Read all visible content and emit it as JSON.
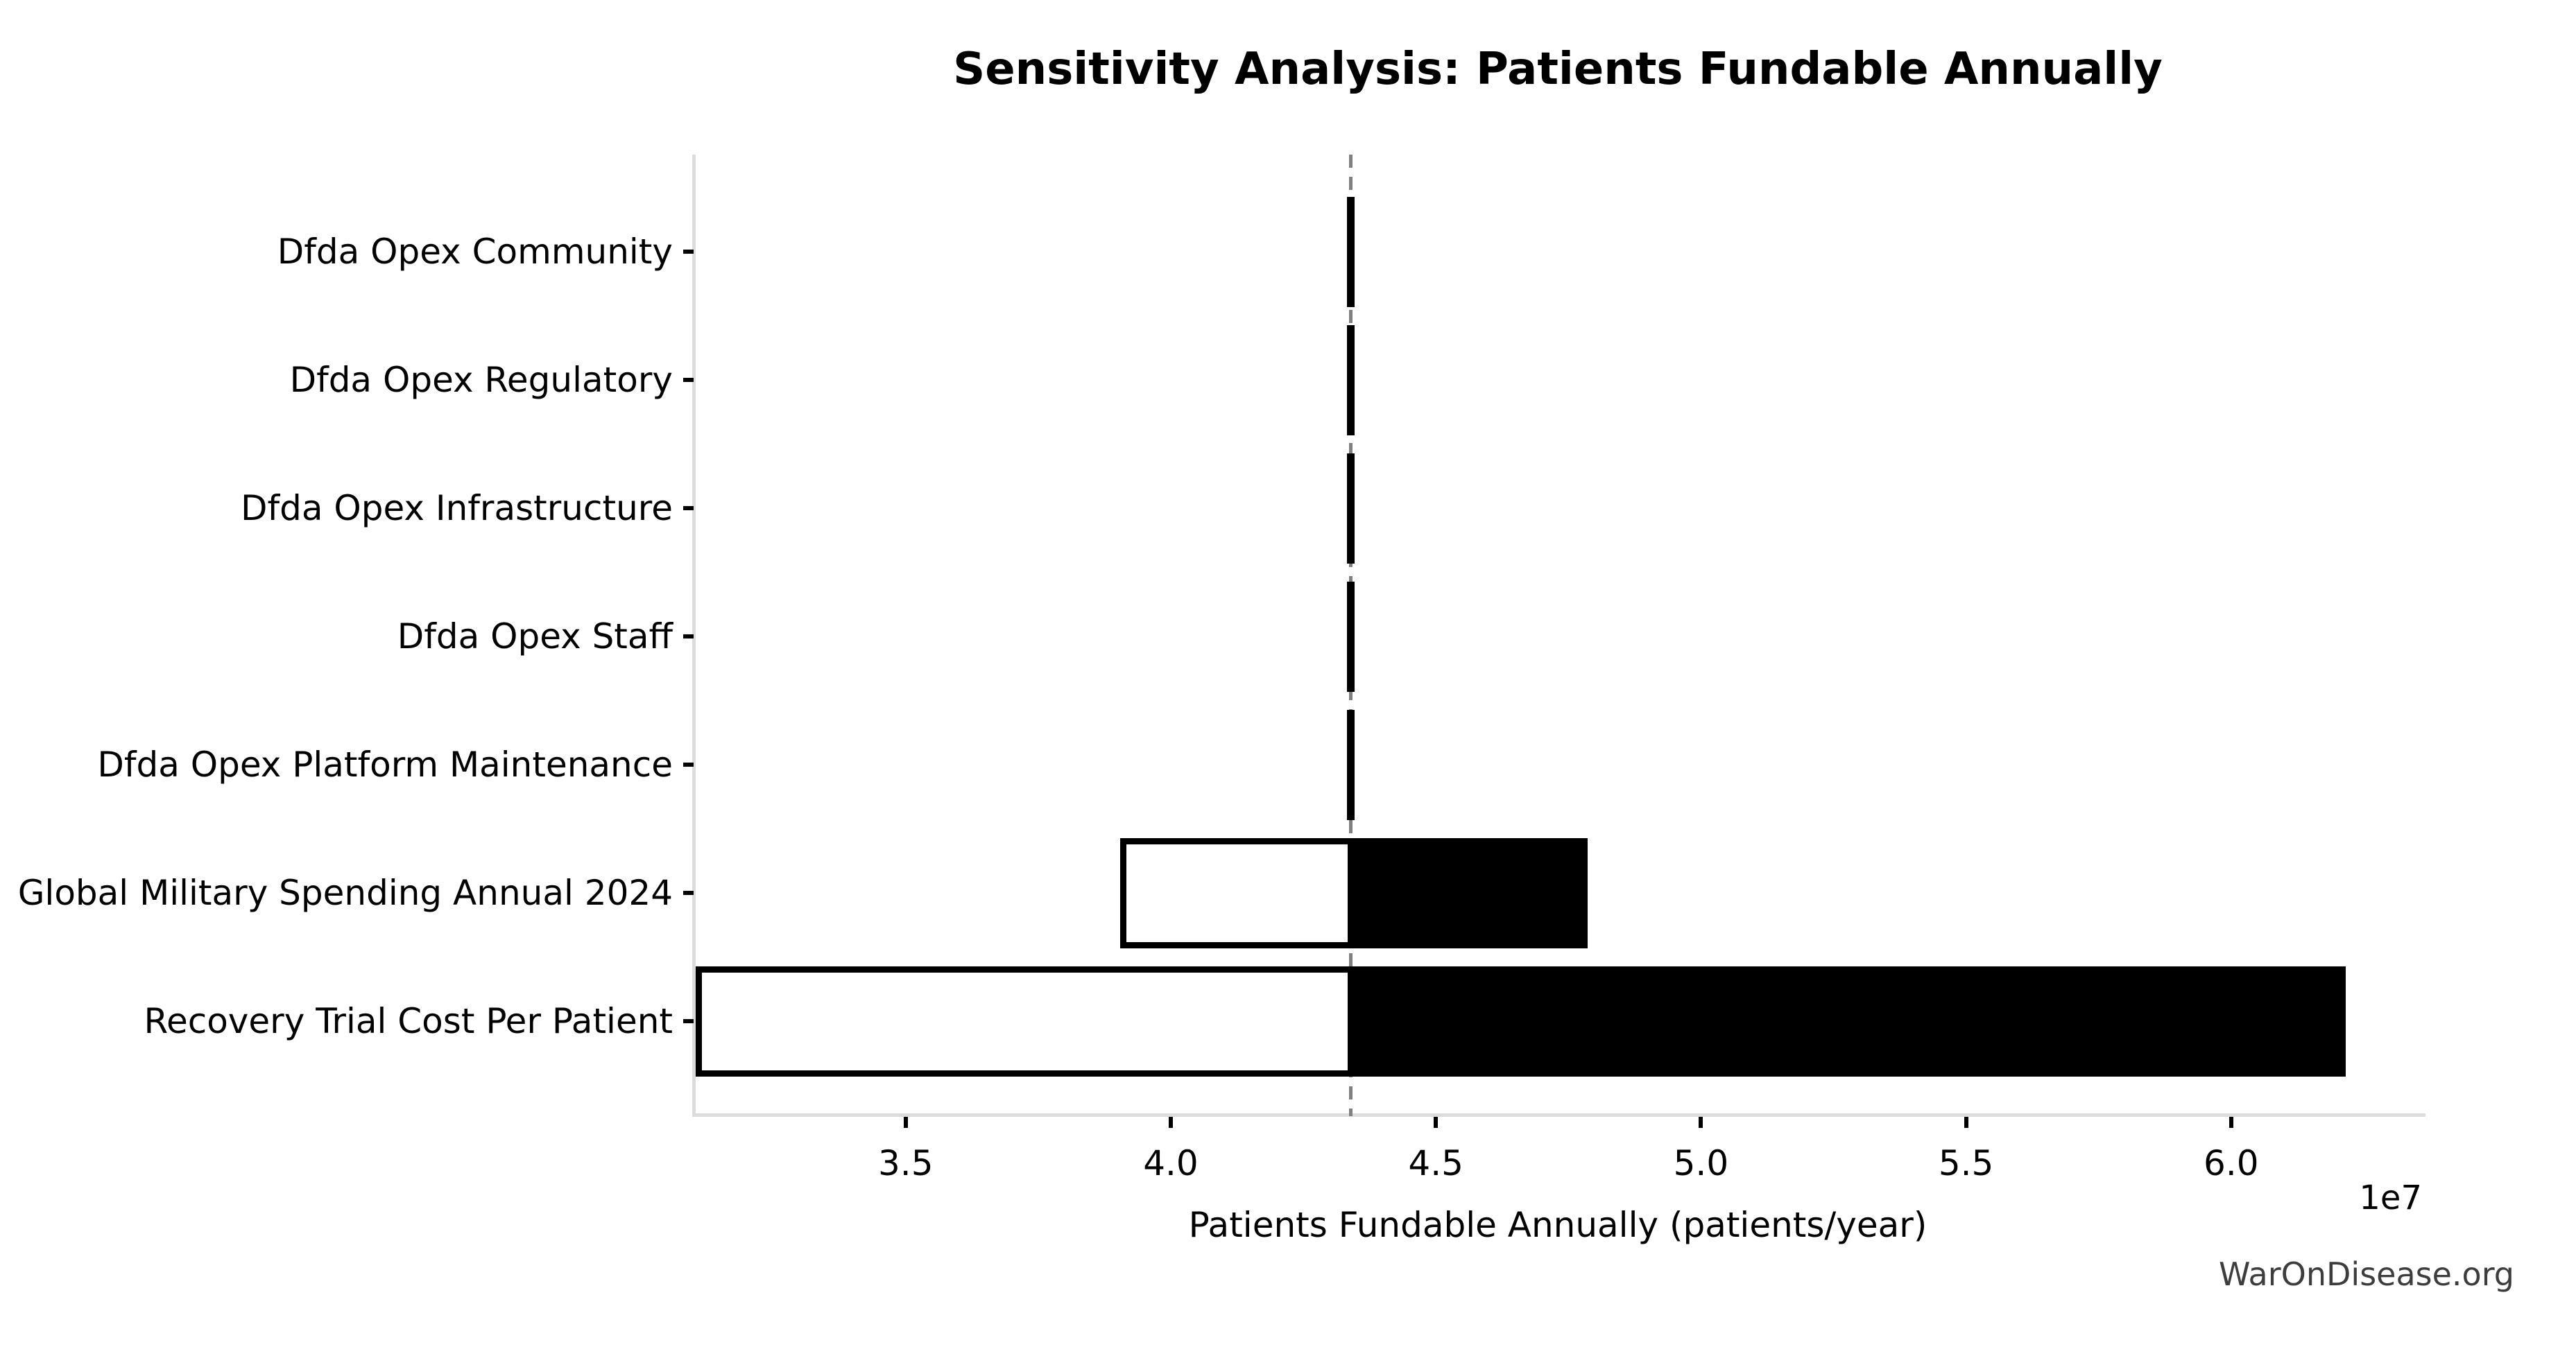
{
  "title": "Sensitivity Analysis: Patients Fundable Annually",
  "watermark": "WarOnDisease.org",
  "chart_data": {
    "type": "bar",
    "subtype": "tornado-sensitivity",
    "orientation": "horizontal",
    "title": "Sensitivity Analysis: Patients Fundable Annually",
    "xlabel": "Patients Fundable Annually (patients/year)",
    "ylabel": "",
    "x_offset_label": "1e7",
    "grid": false,
    "legend": "none",
    "xlim": [
      31000000,
      63600000
    ],
    "x_ticks": [
      35000000,
      40000000,
      45000000,
      50000000,
      55000000,
      60000000
    ],
    "x_tick_labels": [
      "3.5",
      "4.0",
      "4.5",
      "5.0",
      "5.5",
      "6.0"
    ],
    "baseline_value": 43400000,
    "categories": [
      "Dfda Opex Community",
      "Dfda Opex Regulatory",
      "Dfda Opex Infrastructure",
      "Dfda Opex Staff",
      "Dfda Opex Platform Maintenance",
      "Global Military Spending Annual 2024",
      "Recovery Trial Cost Per Patient"
    ],
    "series": [
      {
        "name": "low_end_patients_per_year",
        "values": [
          43330000,
          43330000,
          43330000,
          43330000,
          43330000,
          39100000,
          31100000
        ]
      },
      {
        "name": "high_end_patients_per_year",
        "values": [
          43460000,
          43460000,
          43460000,
          43460000,
          43460000,
          47800000,
          62100000
        ]
      }
    ],
    "colors": {
      "bar_fill_low_side": "#ffffff",
      "bar_fill_high_side": "#000000",
      "bar_edge": "#000000",
      "baseline_line": "#808080",
      "spine": "#dcdcdc",
      "text": "#000000",
      "watermark_text": "#3d3d3d",
      "background": "#ffffff"
    }
  }
}
